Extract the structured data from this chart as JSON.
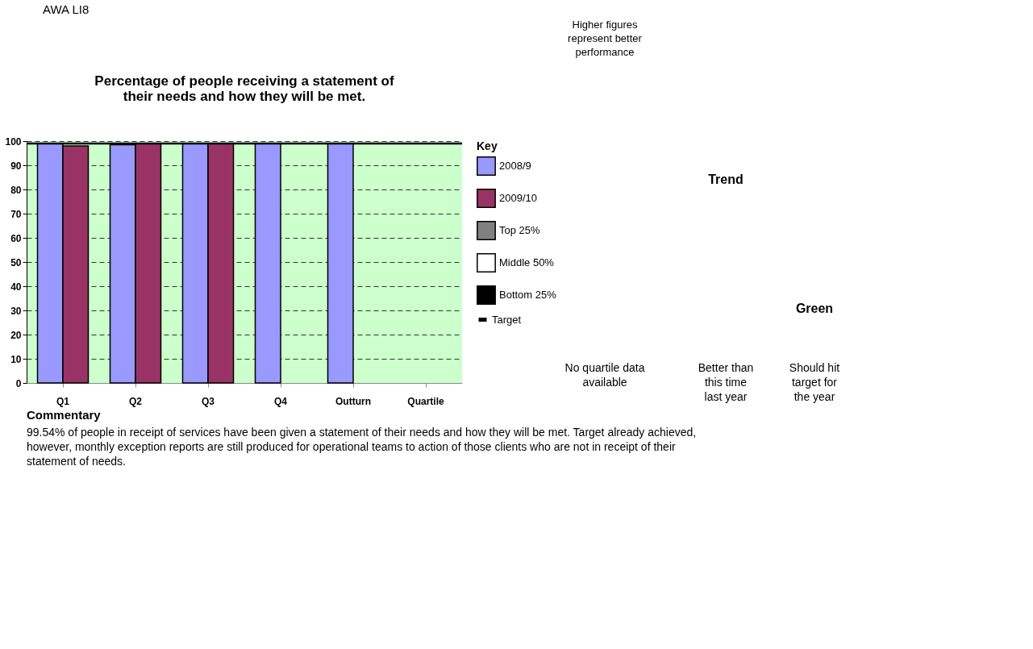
{
  "chart_data": {
    "type": "bar",
    "title": "Percentage of people receiving a statement of their needs and how they will be met.",
    "legend_title": "Key",
    "categories": [
      "Q1",
      "Q2",
      "Q3",
      "Q4",
      "Outturn",
      "Quartile"
    ],
    "series": [
      {
        "name": "2008/9",
        "color": "#9999ff",
        "values": [
          99,
          98.5,
          99,
          99,
          99,
          null
        ]
      },
      {
        "name": "2009/10",
        "color": "#993366",
        "values": [
          98,
          99,
          99,
          null,
          null,
          null
        ]
      },
      {
        "name": "Top 25%",
        "color": "#808080",
        "values": [
          null,
          null,
          null,
          null,
          null,
          null
        ]
      },
      {
        "name": "Middle 50%",
        "color": "#ffffff",
        "values": [
          null,
          null,
          null,
          null,
          null,
          null
        ]
      },
      {
        "name": "Bottom 25%",
        "color": "#000000",
        "values": [
          null,
          null,
          null,
          null,
          null,
          null
        ]
      }
    ],
    "ylim": [
      0,
      100
    ],
    "yticks": [
      0,
      10,
      20,
      30,
      40,
      50,
      60,
      70,
      80,
      90,
      100
    ],
    "grid": "y",
    "legend": "right",
    "ref_lines": [
      {
        "axis": "y",
        "value": 99,
        "label": "Target",
        "color": "#000000"
      }
    ],
    "annotations": [
      "AWA LI8",
      "Higher figures represent better performance",
      "No quartile data available",
      "Trend",
      "Better than this time last year",
      "Green",
      "Should hit target for the year",
      "Commentary",
      "99.54% of people in receipt of services have been given a statement of their needs and how they will be met.  Target already achieved, however, monthly exception reports are still produced for operational teams to action of those clients who are not in receipt of their statement of needs."
    ]
  }
}
